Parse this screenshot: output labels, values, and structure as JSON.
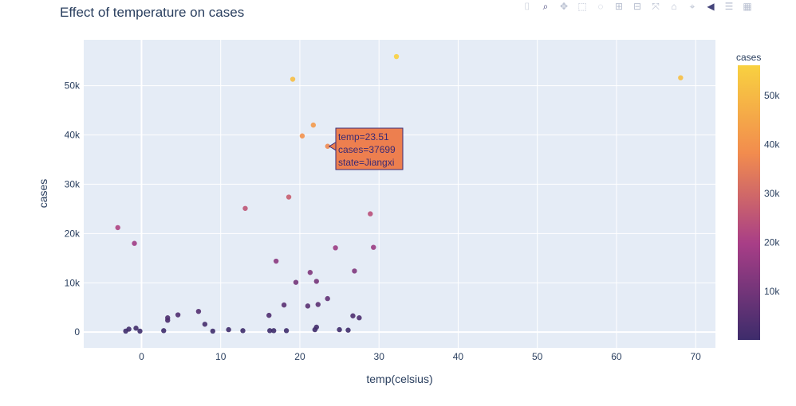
{
  "chart_data": {
    "type": "scatter",
    "title": "Effect of temperature on cases",
    "xlabel": "temp(celsius)",
    "ylabel": "cases",
    "xlim": [
      -7.3,
      72.5
    ],
    "ylim": [
      -3200,
      59300
    ],
    "x_ticks": [
      0,
      10,
      20,
      30,
      40,
      50,
      60,
      70
    ],
    "x_tick_labels": [
      "0",
      "10",
      "20",
      "30",
      "40",
      "50",
      "60",
      "70"
    ],
    "y_ticks": [
      0,
      10000,
      20000,
      30000,
      40000,
      50000
    ],
    "y_tick_labels": [
      "0",
      "10k",
      "20k",
      "30k",
      "40k",
      "50k"
    ],
    "grid": true,
    "colorbar": {
      "title": "cases",
      "min": 100,
      "max": 56200,
      "colorscale": [
        "#3d2c6b",
        "#a83e87",
        "#f28c4e",
        "#f8d140"
      ],
      "ticks": [
        10000,
        20000,
        30000,
        40000,
        50000
      ],
      "tick_labels": [
        "10k",
        "20k",
        "30k",
        "40k",
        "50k"
      ]
    },
    "hover": {
      "temp": 23.51,
      "cases": 37699,
      "lines": [
        "temp=23.51",
        "cases=37699",
        "state=Jiangxi"
      ]
    },
    "points": [
      {
        "x": -3.0,
        "y": 21200
      },
      {
        "x": -0.9,
        "y": 18000
      },
      {
        "x": -2.0,
        "y": 200
      },
      {
        "x": -1.6,
        "y": 600
      },
      {
        "x": -0.7,
        "y": 800
      },
      {
        "x": -0.2,
        "y": 200
      },
      {
        "x": 2.8,
        "y": 300
      },
      {
        "x": 3.3,
        "y": 2400
      },
      {
        "x": 3.3,
        "y": 2900
      },
      {
        "x": 4.6,
        "y": 3500
      },
      {
        "x": 7.2,
        "y": 4200
      },
      {
        "x": 8.0,
        "y": 1600
      },
      {
        "x": 9.0,
        "y": 200
      },
      {
        "x": 11.0,
        "y": 500
      },
      {
        "x": 12.8,
        "y": 300
      },
      {
        "x": 13.1,
        "y": 25100
      },
      {
        "x": 16.1,
        "y": 3400
      },
      {
        "x": 16.2,
        "y": 300
      },
      {
        "x": 16.7,
        "y": 300
      },
      {
        "x": 17.0,
        "y": 14400
      },
      {
        "x": 18.0,
        "y": 5500
      },
      {
        "x": 18.3,
        "y": 300
      },
      {
        "x": 18.6,
        "y": 27400
      },
      {
        "x": 19.1,
        "y": 51300
      },
      {
        "x": 19.5,
        "y": 10100
      },
      {
        "x": 20.3,
        "y": 39800
      },
      {
        "x": 21.0,
        "y": 5300
      },
      {
        "x": 21.3,
        "y": 12100
      },
      {
        "x": 21.7,
        "y": 42000
      },
      {
        "x": 21.9,
        "y": 500
      },
      {
        "x": 22.1,
        "y": 10300
      },
      {
        "x": 22.3,
        "y": 5600
      },
      {
        "x": 22.1,
        "y": 1000
      },
      {
        "x": 23.5,
        "y": 6800
      },
      {
        "x": 23.51,
        "y": 37699
      },
      {
        "x": 24.5,
        "y": 17100
      },
      {
        "x": 25.0,
        "y": 500
      },
      {
        "x": 26.1,
        "y": 400
      },
      {
        "x": 26.7,
        "y": 3300
      },
      {
        "x": 26.9,
        "y": 12400
      },
      {
        "x": 27.5,
        "y": 2900
      },
      {
        "x": 28.9,
        "y": 24000
      },
      {
        "x": 29.3,
        "y": 17200
      },
      {
        "x": 32.2,
        "y": 55900
      },
      {
        "x": 68.1,
        "y": 51600
      }
    ]
  },
  "modebar": [
    {
      "name": "camera-icon",
      "glyph": "⌷",
      "active": false
    },
    {
      "name": "zoom-icon",
      "glyph": "⌕",
      "active": true
    },
    {
      "name": "pan-icon",
      "glyph": "✥",
      "active": false
    },
    {
      "name": "box-select-icon",
      "glyph": "⬚",
      "active": false
    },
    {
      "name": "lasso-select-icon",
      "glyph": "◌",
      "active": false
    },
    {
      "name": "zoom-in-icon",
      "glyph": "⊞",
      "active": false
    },
    {
      "name": "zoom-out-icon",
      "glyph": "⊟",
      "active": false
    },
    {
      "name": "autoscale-icon",
      "glyph": "⤧",
      "active": false
    },
    {
      "name": "reset-axes-icon",
      "glyph": "⌂",
      "active": false
    },
    {
      "name": "spike-lines-icon",
      "glyph": "⌖",
      "active": false
    },
    {
      "name": "hover-closest-icon",
      "glyph": "◀",
      "active": true
    },
    {
      "name": "hover-compare-icon",
      "glyph": "☰",
      "active": false
    },
    {
      "name": "plotly-logo-icon",
      "glyph": "▦",
      "active": false
    }
  ]
}
